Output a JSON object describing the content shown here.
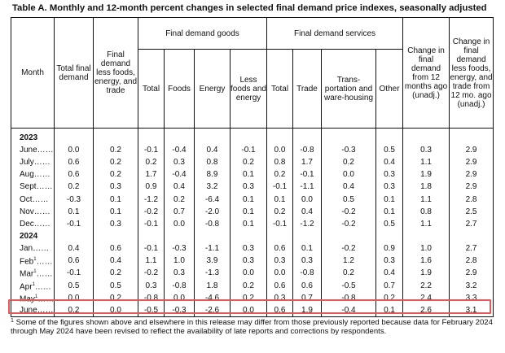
{
  "title": "Table A. Monthly and 12-month percent changes in selected final demand price indexes, seasonally adjusted",
  "headers": {
    "month": "Month",
    "total_final_demand": "Total final demand",
    "fd_less": "Final demand less foods, energy, and trade",
    "goods_group": "Final demand goods",
    "goods_total": "Total",
    "goods_foods": "Foods",
    "goods_energy": "Energy",
    "goods_less": "Less foods and energy",
    "services_group": "Final demand services",
    "services_total": "Total",
    "services_trade": "Trade",
    "services_transport": "Trans-portation and ware-housing",
    "services_other": "Other",
    "change_12mo": "Change in final demand from 12 months ago (unadj.)",
    "change_less_12mo": "Change in final demand less foods, energy, and trade from 12 mo. ago (unadj.)"
  },
  "years": [
    "2023",
    "2024"
  ],
  "rows_2023": [
    {
      "month": "June……",
      "sup": "",
      "values": [
        "0.0",
        "0.2",
        "-0.1",
        "-0.4",
        "0.4",
        "-0.1",
        "0.0",
        "-0.8",
        "-0.3",
        "0.5",
        "0.3",
        "2.9"
      ]
    },
    {
      "month": "July……",
      "sup": "",
      "values": [
        "0.6",
        "0.2",
        "0.2",
        "0.3",
        "0.8",
        "0.2",
        "0.8",
        "1.7",
        "0.2",
        "0.4",
        "1.1",
        "2.9"
      ]
    },
    {
      "month": "Aug……",
      "sup": "",
      "values": [
        "0.6",
        "0.2",
        "1.7",
        "-0.4",
        "8.9",
        "0.1",
        "0.2",
        "-0.1",
        "0.0",
        "0.3",
        "1.9",
        "2.9"
      ]
    },
    {
      "month": "Sept……",
      "sup": "",
      "values": [
        "0.2",
        "0.3",
        "0.9",
        "0.4",
        "3.2",
        "0.3",
        "-0.1",
        "-1.1",
        "0.4",
        "0.3",
        "1.8",
        "2.9"
      ]
    },
    {
      "month": "Oct……",
      "sup": "",
      "values": [
        "-0.3",
        "0.1",
        "-1.2",
        "0.2",
        "-6.4",
        "0.1",
        "0.1",
        "0.0",
        "0.5",
        "0.1",
        "1.1",
        "2.8"
      ]
    },
    {
      "month": "Nov……",
      "sup": "",
      "values": [
        "0.1",
        "0.1",
        "-0.2",
        "0.7",
        "-2.0",
        "0.1",
        "0.2",
        "0.4",
        "-0.2",
        "0.1",
        "0.8",
        "2.5"
      ]
    },
    {
      "month": "Dec……",
      "sup": "",
      "values": [
        "-0.1",
        "0.3",
        "-0.1",
        "0.0",
        "-0.8",
        "0.1",
        "-0.1",
        "-1.2",
        "-0.2",
        "0.5",
        "1.1",
        "2.7"
      ]
    }
  ],
  "rows_2024": [
    {
      "month": "Jan……",
      "sup": "",
      "values": [
        "0.4",
        "0.6",
        "-0.1",
        "-0.3",
        "-1.1",
        "0.3",
        "0.6",
        "0.1",
        "-0.2",
        "0.9",
        "1.0",
        "2.7"
      ]
    },
    {
      "month": "Feb",
      "sup": "1",
      "values": [
        "0.6",
        "0.4",
        "1.1",
        "1.0",
        "3.9",
        "0.3",
        "0.3",
        "0.3",
        "1.2",
        "0.3",
        "1.6",
        "2.8"
      ]
    },
    {
      "month": "Mar",
      "sup": "1",
      "values": [
        "-0.1",
        "0.2",
        "-0.2",
        "0.3",
        "-1.3",
        "0.0",
        "0.0",
        "-0.8",
        "0.2",
        "0.4",
        "1.9",
        "2.9"
      ]
    },
    {
      "month": "Apr",
      "sup": "1",
      "values": [
        "0.5",
        "0.5",
        "0.3",
        "-0.8",
        "1.8",
        "0.2",
        "0.6",
        "0.6",
        "-0.5",
        "0.7",
        "2.2",
        "3.2"
      ]
    },
    {
      "month": "May",
      "sup": "1",
      "values": [
        "0.0",
        "0.2",
        "-0.8",
        "0.0",
        "-4.6",
        "0.2",
        "0.3",
        "0.7",
        "-0.8",
        "0.2",
        "2.4",
        "3.3"
      ]
    },
    {
      "month": "June……",
      "sup": "",
      "values": [
        "0.2",
        "0.0",
        "-0.5",
        "-0.3",
        "-2.6",
        "0.0",
        "0.6",
        "1.9",
        "-0.4",
        "0.1",
        "2.6",
        "3.1"
      ]
    }
  ],
  "footnote": {
    "sup": "1",
    "text": "Some of the figures shown above and elsewhere in this release may differ from those previously reported because data for February 2024 through May 2024 have been revised to reflect the availability of late reports and corrections by respondents."
  },
  "colors": {
    "highlight": "#e0595b",
    "rule": "#111111"
  }
}
